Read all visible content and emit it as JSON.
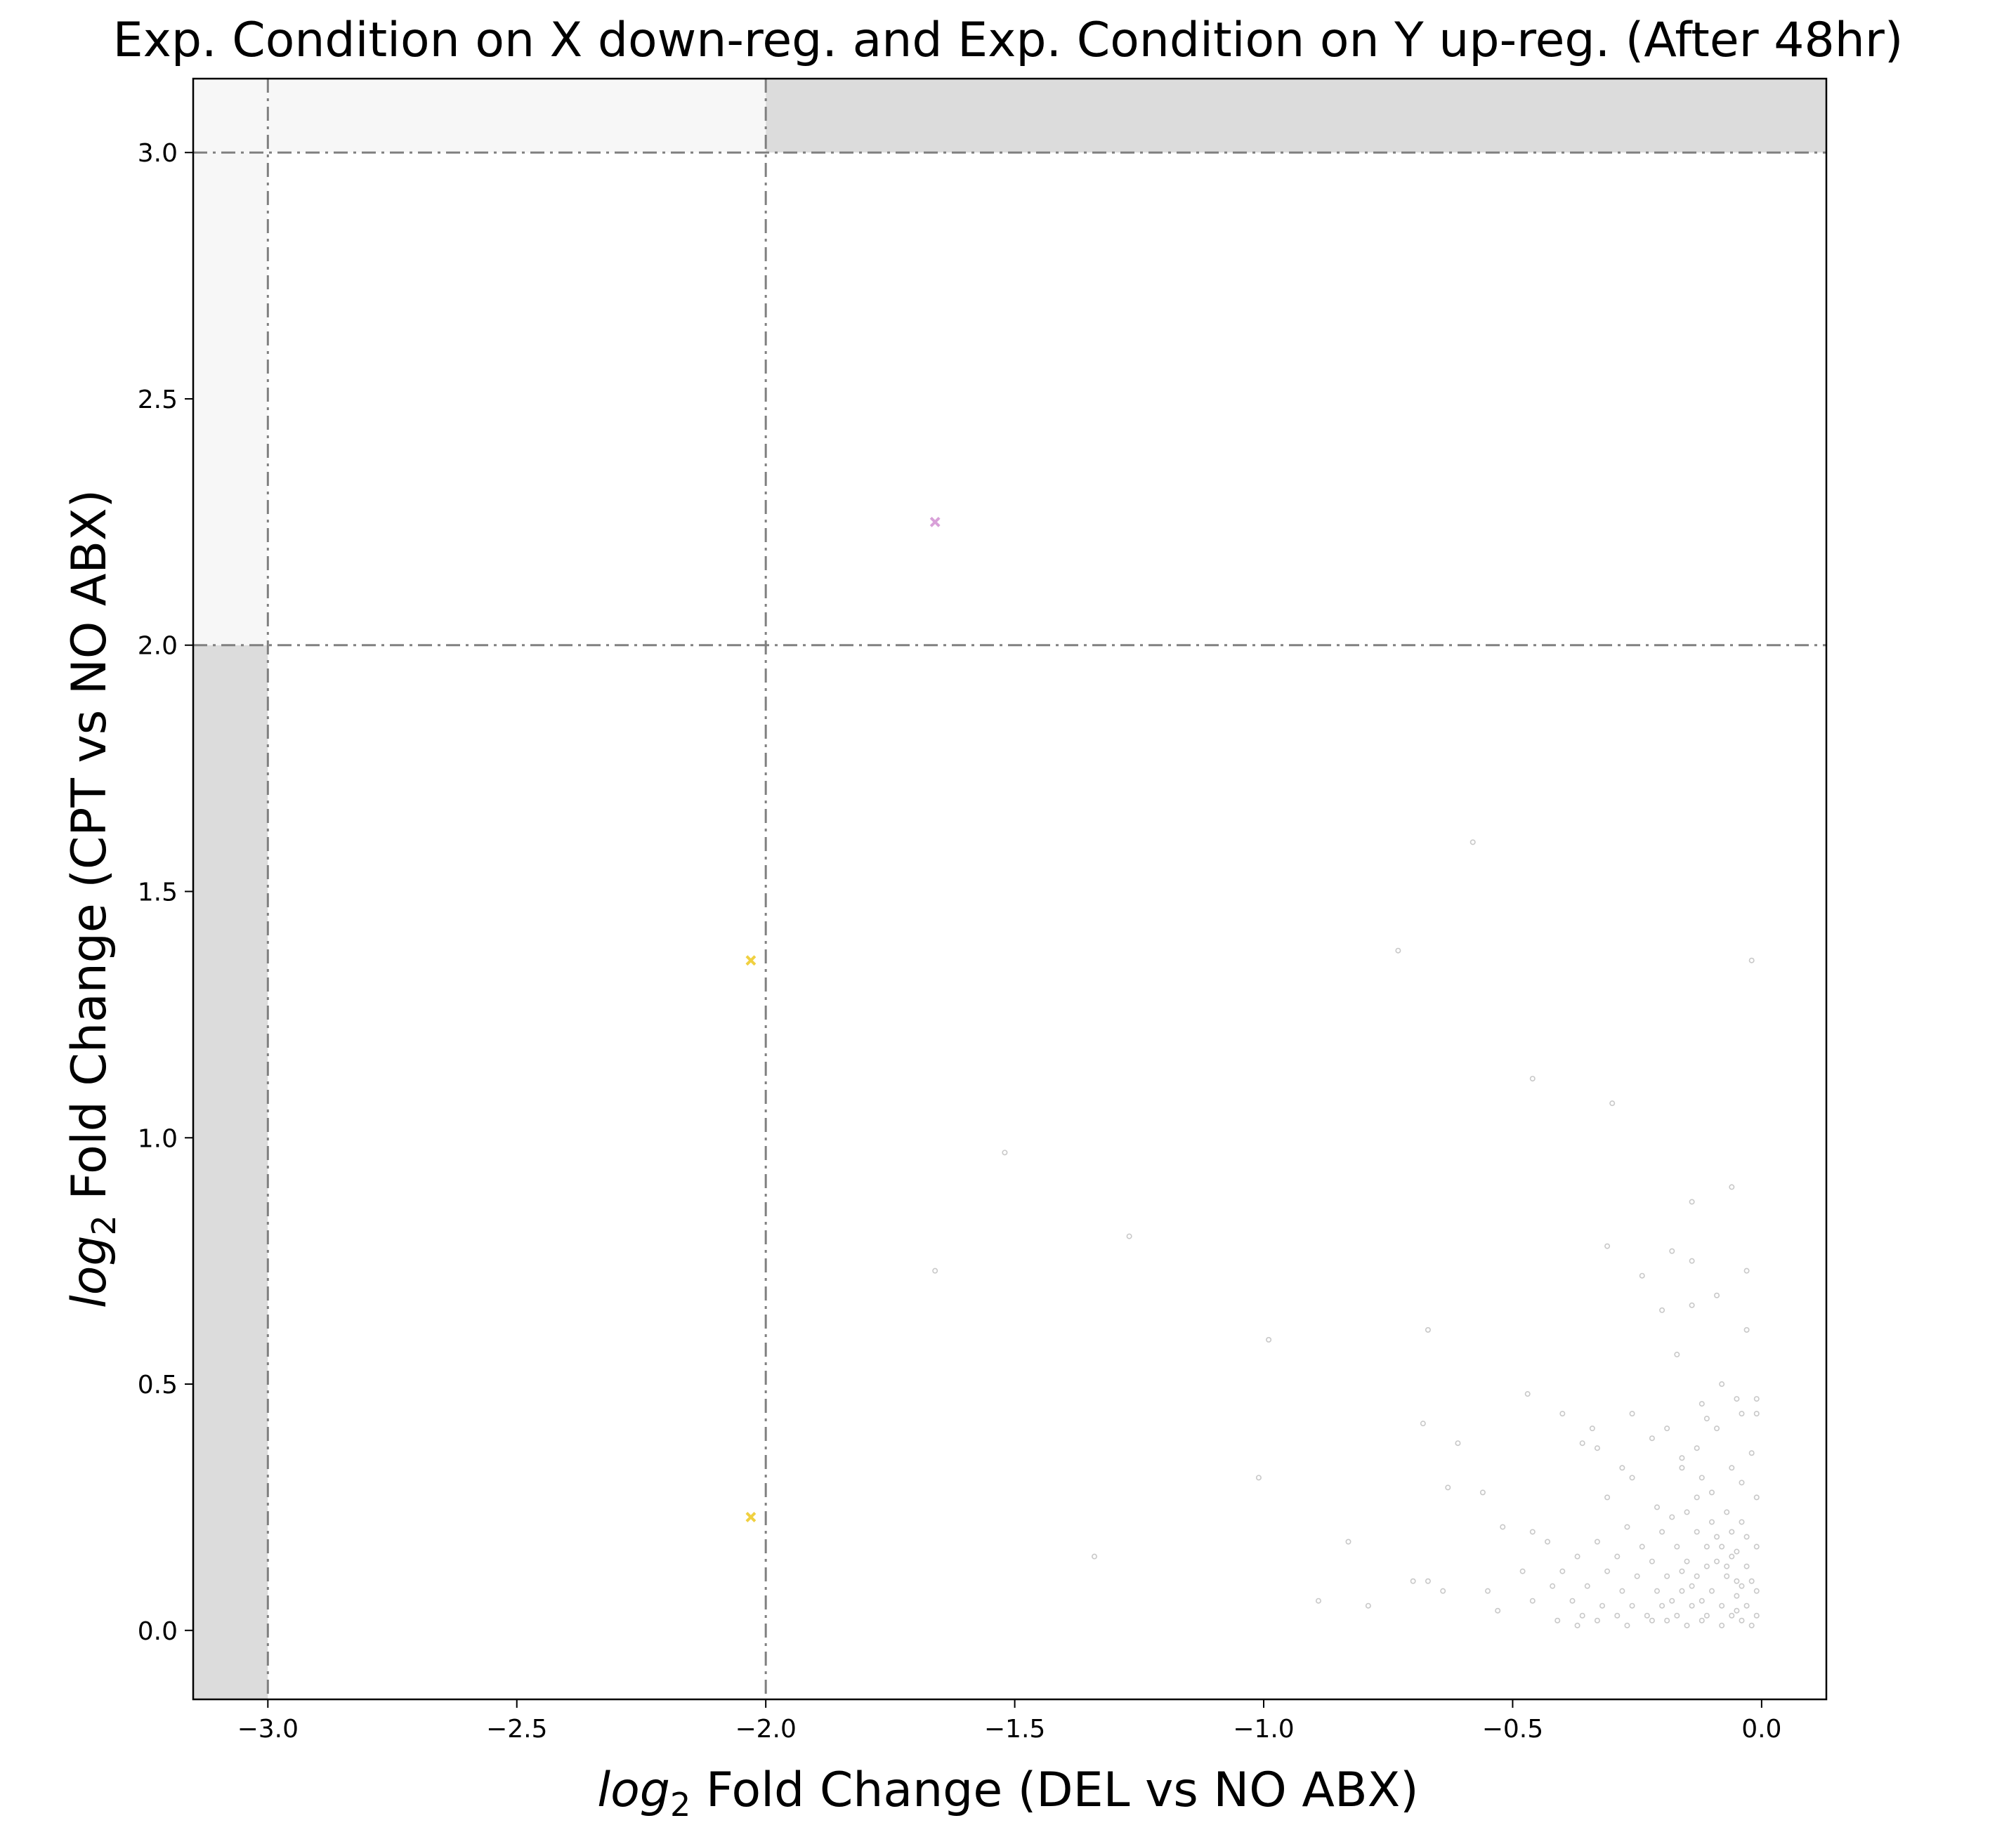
{
  "chart_data": {
    "type": "scatter",
    "title": "Exp. Condition on X down-reg. and Exp. Condition on Y up-reg. (After 48hr)",
    "xlabel": {
      "italic": "log",
      "sub": "2",
      "rest": " Fold Change (DEL vs NO ABX)"
    },
    "ylabel": {
      "italic": "log",
      "sub": "2",
      "rest": " Fold Change (CPT vs NO ABX)"
    },
    "xlim": [
      -3.15,
      0.13
    ],
    "ylim": [
      -0.14,
      3.15
    ],
    "xticks": [
      {
        "value": -3.0,
        "label": "−3.0"
      },
      {
        "value": -2.5,
        "label": "−2.5"
      },
      {
        "value": -2.0,
        "label": "−2.0"
      },
      {
        "value": -1.5,
        "label": "−1.5"
      },
      {
        "value": -1.0,
        "label": "−1.0"
      },
      {
        "value": -0.5,
        "label": "−0.5"
      },
      {
        "value": 0.0,
        "label": "0.0"
      }
    ],
    "yticks": [
      {
        "value": 0.0,
        "label": "0.0"
      },
      {
        "value": 0.5,
        "label": "0.5"
      },
      {
        "value": 1.0,
        "label": "1.0"
      },
      {
        "value": 1.5,
        "label": "1.5"
      },
      {
        "value": 2.0,
        "label": "2.0"
      },
      {
        "value": 2.5,
        "label": "2.5"
      },
      {
        "value": 3.0,
        "label": "3.0"
      }
    ],
    "shaded_regions": [
      {
        "x": [
          -3.15,
          -3.0
        ],
        "y": [
          -0.14,
          2.0
        ],
        "color": "#dcdcdc"
      },
      {
        "x": [
          -2.0,
          0.13
        ],
        "y": [
          3.0,
          3.15
        ],
        "color": "#dcdcdc"
      },
      {
        "x": [
          -3.15,
          -3.0
        ],
        "y": [
          2.0,
          3.15
        ],
        "color": "#f7f7f7"
      },
      {
        "x": [
          -3.0,
          -2.0
        ],
        "y": [
          3.0,
          3.15
        ],
        "color": "#f7f7f7"
      }
    ],
    "reference_lines": [
      {
        "orientation": "vertical",
        "value": -3.0
      },
      {
        "orientation": "vertical",
        "value": -2.0
      },
      {
        "orientation": "horizontal",
        "value": 2.0
      },
      {
        "orientation": "horizontal",
        "value": 3.0
      }
    ],
    "line_color": "#808080",
    "highlight_series": [
      {
        "color": "#d8a0d8",
        "points": [
          [
            -1.66,
            2.25
          ]
        ]
      },
      {
        "color": "#f0d040",
        "points": [
          [
            -2.03,
            1.36
          ],
          [
            -2.03,
            0.23
          ]
        ]
      }
    ],
    "background_series": {
      "color": "#c8c8c8",
      "points": [
        [
          -0.58,
          1.6
        ],
        [
          -0.73,
          1.38
        ],
        [
          -0.02,
          1.36
        ],
        [
          -0.46,
          1.12
        ],
        [
          -0.3,
          1.07
        ],
        [
          -1.52,
          0.97
        ],
        [
          -0.06,
          0.9
        ],
        [
          -0.14,
          0.87
        ],
        [
          -1.27,
          0.8
        ],
        [
          -0.31,
          0.78
        ],
        [
          -0.18,
          0.77
        ],
        [
          -1.66,
          0.73
        ],
        [
          -0.03,
          0.73
        ],
        [
          -0.14,
          0.75
        ],
        [
          -0.24,
          0.72
        ],
        [
          -0.09,
          0.68
        ],
        [
          -0.14,
          0.66
        ],
        [
          -0.2,
          0.65
        ],
        [
          -0.67,
          0.61
        ],
        [
          -0.03,
          0.61
        ],
        [
          -0.99,
          0.59
        ],
        [
          -0.17,
          0.56
        ],
        [
          -0.47,
          0.48
        ],
        [
          -0.08,
          0.5
        ],
        [
          -0.01,
          0.47
        ],
        [
          -0.12,
          0.46
        ],
        [
          -0.05,
          0.47
        ],
        [
          -0.4,
          0.44
        ],
        [
          -0.26,
          0.44
        ],
        [
          -0.04,
          0.44
        ],
        [
          -0.01,
          0.44
        ],
        [
          -0.11,
          0.43
        ],
        [
          -0.68,
          0.42
        ],
        [
          -0.34,
          0.41
        ],
        [
          -0.19,
          0.41
        ],
        [
          -0.36,
          0.38
        ],
        [
          -0.61,
          0.38
        ],
        [
          -0.22,
          0.39
        ],
        [
          -0.09,
          0.41
        ],
        [
          -0.16,
          0.35
        ],
        [
          -0.33,
          0.37
        ],
        [
          -0.13,
          0.37
        ],
        [
          -0.02,
          0.36
        ],
        [
          -0.28,
          0.33
        ],
        [
          -0.06,
          0.33
        ],
        [
          -0.16,
          0.33
        ],
        [
          -1.01,
          0.31
        ],
        [
          -0.26,
          0.31
        ],
        [
          -0.12,
          0.31
        ],
        [
          -0.04,
          0.3
        ],
        [
          -0.63,
          0.29
        ],
        [
          -0.56,
          0.28
        ],
        [
          -0.31,
          0.27
        ],
        [
          -0.1,
          0.28
        ],
        [
          -0.01,
          0.27
        ],
        [
          -0.21,
          0.25
        ],
        [
          -0.18,
          0.23
        ],
        [
          -0.15,
          0.24
        ],
        [
          -0.07,
          0.24
        ],
        [
          -0.04,
          0.22
        ],
        [
          -0.52,
          0.21
        ],
        [
          -0.46,
          0.2
        ],
        [
          -0.27,
          0.21
        ],
        [
          -0.2,
          0.2
        ],
        [
          -0.13,
          0.2
        ],
        [
          -0.06,
          0.2
        ],
        [
          -0.03,
          0.19
        ],
        [
          -0.43,
          0.18
        ],
        [
          -0.33,
          0.18
        ],
        [
          -0.24,
          0.17
        ],
        [
          -0.17,
          0.17
        ],
        [
          -0.11,
          0.17
        ],
        [
          -0.05,
          0.16
        ],
        [
          -0.01,
          0.17
        ],
        [
          -0.83,
          0.18
        ],
        [
          -1.34,
          0.15
        ],
        [
          -0.37,
          0.15
        ],
        [
          -0.29,
          0.15
        ],
        [
          -0.22,
          0.14
        ],
        [
          -0.15,
          0.14
        ],
        [
          -0.09,
          0.14
        ],
        [
          -0.03,
          0.13
        ],
        [
          -0.48,
          0.12
        ],
        [
          -0.4,
          0.12
        ],
        [
          -0.31,
          0.12
        ],
        [
          -0.25,
          0.11
        ],
        [
          -0.19,
          0.11
        ],
        [
          -0.13,
          0.11
        ],
        [
          -0.07,
          0.11
        ],
        [
          -0.02,
          0.1
        ],
        [
          -0.7,
          0.1
        ],
        [
          -0.67,
          0.1
        ],
        [
          -0.55,
          0.08
        ],
        [
          -0.42,
          0.09
        ],
        [
          -0.35,
          0.09
        ],
        [
          -0.28,
          0.08
        ],
        [
          -0.21,
          0.08
        ],
        [
          -0.16,
          0.08
        ],
        [
          -0.1,
          0.08
        ],
        [
          -0.05,
          0.07
        ],
        [
          -0.01,
          0.08
        ],
        [
          -0.64,
          0.08
        ],
        [
          -0.89,
          0.06
        ],
        [
          -0.46,
          0.06
        ],
        [
          -0.38,
          0.06
        ],
        [
          -0.32,
          0.05
        ],
        [
          -0.26,
          0.05
        ],
        [
          -0.2,
          0.05
        ],
        [
          -0.14,
          0.05
        ],
        [
          -0.08,
          0.05
        ],
        [
          -0.03,
          0.05
        ],
        [
          -0.79,
          0.05
        ],
        [
          -0.53,
          0.04
        ],
        [
          -0.36,
          0.03
        ],
        [
          -0.29,
          0.03
        ],
        [
          -0.23,
          0.03
        ],
        [
          -0.17,
          0.03
        ],
        [
          -0.11,
          0.03
        ],
        [
          -0.06,
          0.03
        ],
        [
          -0.01,
          0.03
        ],
        [
          -0.41,
          0.02
        ],
        [
          -0.33,
          0.02
        ],
        [
          -0.19,
          0.02
        ],
        [
          -0.12,
          0.02
        ],
        [
          -0.04,
          0.02
        ],
        [
          -0.37,
          0.01
        ],
        [
          -0.27,
          0.01
        ],
        [
          -0.15,
          0.01
        ],
        [
          -0.08,
          0.01
        ],
        [
          -0.02,
          0.01
        ],
        [
          -0.09,
          0.19
        ],
        [
          -0.12,
          0.06
        ],
        [
          -0.14,
          0.09
        ],
        [
          -0.07,
          0.13
        ],
        [
          -0.05,
          0.1
        ],
        [
          -0.1,
          0.22
        ],
        [
          -0.13,
          0.27
        ],
        [
          -0.06,
          0.15
        ],
        [
          -0.16,
          0.12
        ],
        [
          -0.04,
          0.09
        ],
        [
          -0.22,
          0.02
        ],
        [
          -0.18,
          0.06
        ],
        [
          -0.08,
          0.17
        ],
        [
          -0.11,
          0.13
        ],
        [
          -0.05,
          0.04
        ]
      ]
    },
    "grid": false,
    "legend": "none"
  }
}
